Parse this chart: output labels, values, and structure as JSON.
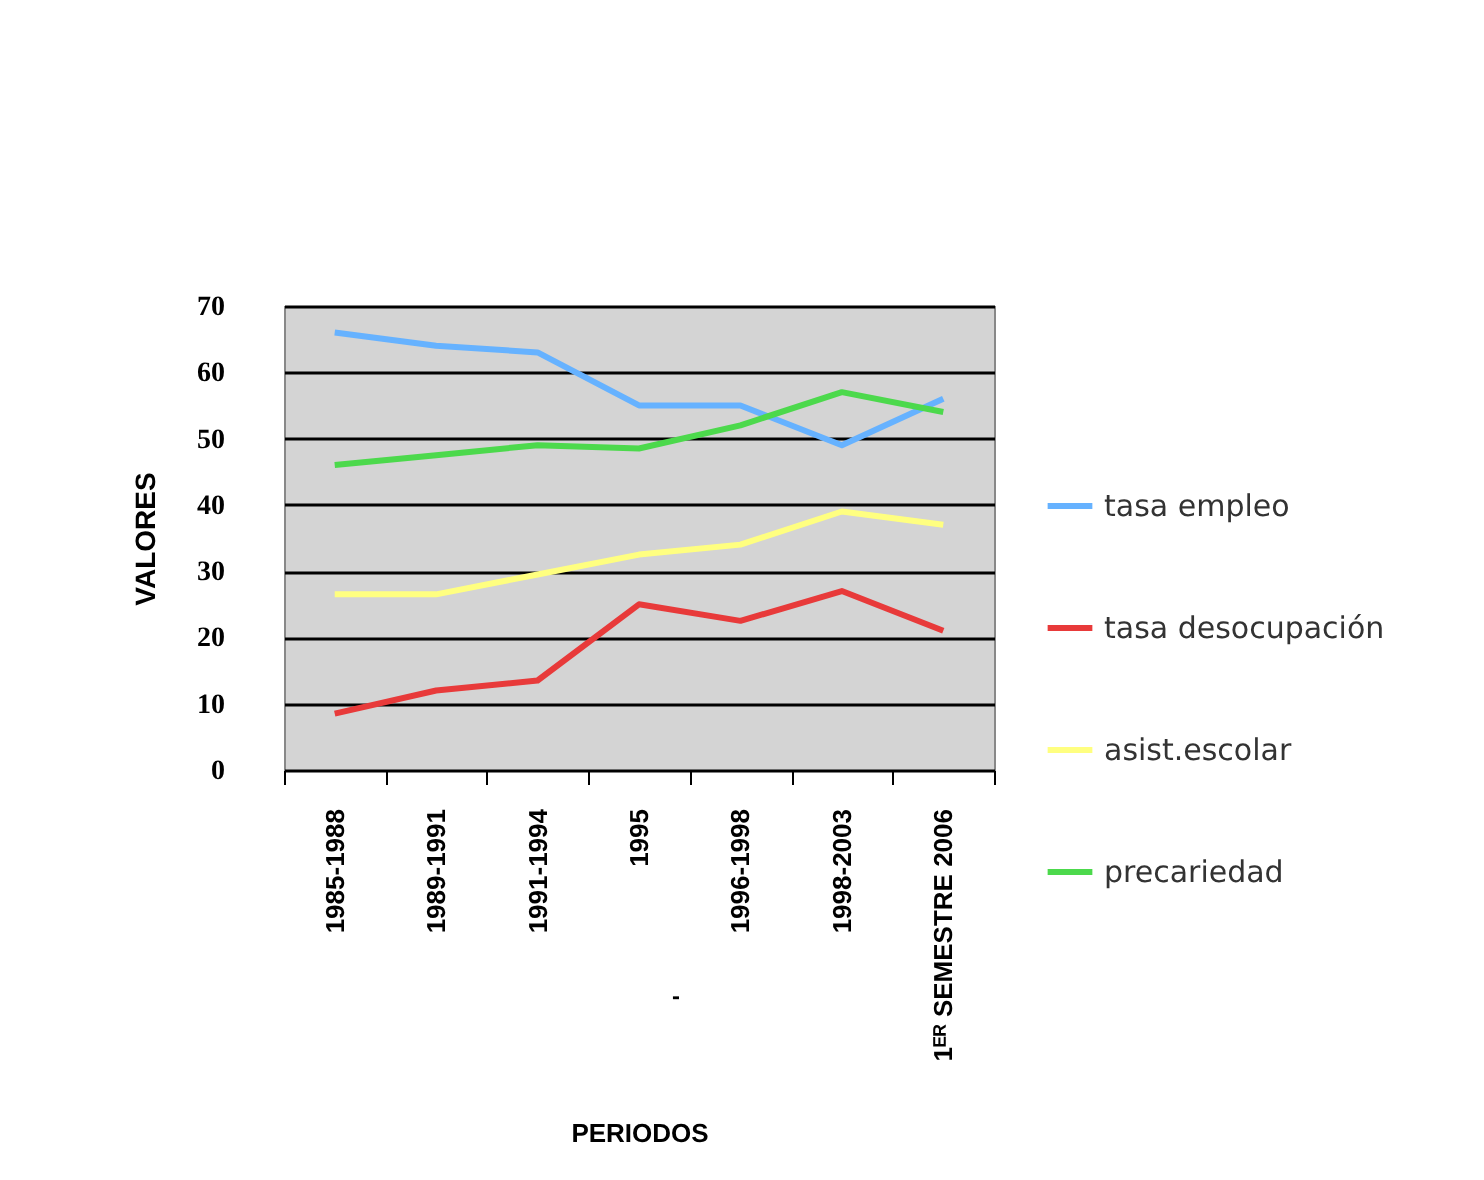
{
  "chart_data": {
    "type": "line",
    "xlabel": "PERIODOS",
    "ylabel": "VALORES",
    "categories": [
      "1985-1988",
      "1989-1991",
      "1991-1994",
      "1995",
      "1996-1998",
      "1998-2003",
      "1ᴱᴿ SEMESTRE 2006"
    ],
    "series": [
      {
        "name": "tasa empleo",
        "color": "#66b2ff",
        "values": [
          66,
          64,
          63,
          55,
          55,
          49,
          56
        ]
      },
      {
        "name": "tasa desocupación",
        "color": "#e83a3a",
        "values": [
          8.5,
          12,
          13.5,
          25,
          22.5,
          27,
          21
        ]
      },
      {
        "name": "asist.escolar",
        "color": "#ffff80",
        "values": [
          26.5,
          26.5,
          29.5,
          32.5,
          34,
          39,
          37
        ]
      },
      {
        "name": "precariedad",
        "color": "#4cd94c",
        "values": [
          46,
          47.5,
          49,
          48.5,
          52,
          57,
          54
        ]
      }
    ],
    "ylim": [
      0,
      70
    ],
    "yticks": [
      0,
      10,
      20,
      30,
      40,
      50,
      60,
      70
    ],
    "grid": "y",
    "legend": "right",
    "marker": "none",
    "line_style": "solid",
    "annotations": [
      "-"
    ]
  }
}
